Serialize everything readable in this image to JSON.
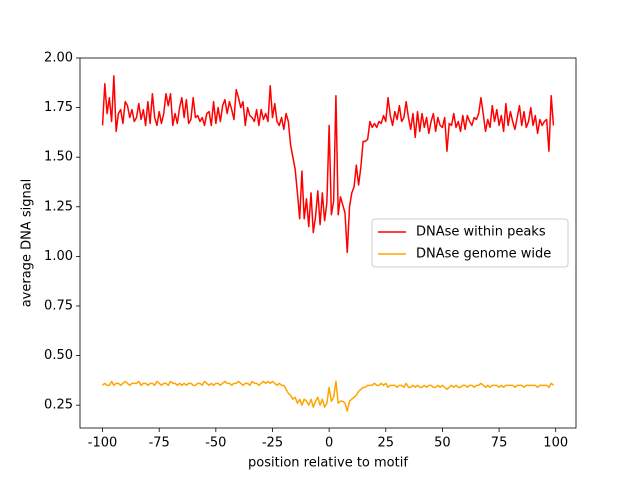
{
  "chart_data": {
    "type": "line",
    "xlabel": "position relative to motif",
    "ylabel": "average DNA signal",
    "x": [
      -100,
      -99,
      -98,
      -97,
      -96,
      -95,
      -94,
      -93,
      -92,
      -91,
      -90,
      -89,
      -88,
      -87,
      -86,
      -85,
      -84,
      -83,
      -82,
      -81,
      -80,
      -79,
      -78,
      -77,
      -76,
      -75,
      -74,
      -73,
      -72,
      -71,
      -70,
      -69,
      -68,
      -67,
      -66,
      -65,
      -64,
      -63,
      -62,
      -61,
      -60,
      -59,
      -58,
      -57,
      -56,
      -55,
      -54,
      -53,
      -52,
      -51,
      -50,
      -49,
      -48,
      -47,
      -46,
      -45,
      -44,
      -43,
      -42,
      -41,
      -40,
      -39,
      -38,
      -37,
      -36,
      -35,
      -34,
      -33,
      -32,
      -31,
      -30,
      -29,
      -28,
      -27,
      -26,
      -25,
      -24,
      -23,
      -22,
      -21,
      -20,
      -19,
      -18,
      -17,
      -16,
      -15,
      -14,
      -13,
      -12,
      -11,
      -10,
      -9,
      -8,
      -7,
      -6,
      -5,
      -4,
      -3,
      -2,
      -1,
      0,
      1,
      2,
      3,
      4,
      5,
      6,
      7,
      8,
      9,
      10,
      11,
      12,
      13,
      14,
      15,
      16,
      17,
      18,
      19,
      20,
      21,
      22,
      23,
      24,
      25,
      26,
      27,
      28,
      29,
      30,
      31,
      32,
      33,
      34,
      35,
      36,
      37,
      38,
      39,
      40,
      41,
      42,
      43,
      44,
      45,
      46,
      47,
      48,
      49,
      50,
      51,
      52,
      53,
      54,
      55,
      56,
      57,
      58,
      59,
      60,
      61,
      62,
      63,
      64,
      65,
      66,
      67,
      68,
      69,
      70,
      71,
      72,
      73,
      74,
      75,
      76,
      77,
      78,
      79,
      80,
      81,
      82,
      83,
      84,
      85,
      86,
      87,
      88,
      89,
      90,
      91,
      92,
      93,
      94,
      95,
      96,
      97,
      98,
      99
    ],
    "series": [
      {
        "name": "DNAse within peaks",
        "color": "#ff0000",
        "values": [
          1.66,
          1.87,
          1.72,
          1.8,
          1.68,
          1.91,
          1.63,
          1.72,
          1.74,
          1.67,
          1.78,
          1.76,
          1.7,
          1.74,
          1.68,
          1.7,
          1.77,
          1.69,
          1.74,
          1.66,
          1.78,
          1.67,
          1.82,
          1.7,
          1.66,
          1.73,
          1.67,
          1.72,
          1.82,
          1.76,
          1.82,
          1.66,
          1.72,
          1.67,
          1.75,
          1.8,
          1.7,
          1.79,
          1.67,
          1.69,
          1.8,
          1.7,
          1.71,
          1.68,
          1.7,
          1.66,
          1.72,
          1.73,
          1.66,
          1.78,
          1.67,
          1.75,
          1.68,
          1.76,
          1.79,
          1.72,
          1.78,
          1.74,
          1.69,
          1.84,
          1.8,
          1.75,
          1.78,
          1.66,
          1.75,
          1.71,
          1.7,
          1.68,
          1.74,
          1.66,
          1.74,
          1.69,
          1.72,
          1.68,
          1.86,
          1.7,
          1.77,
          1.68,
          1.66,
          1.7,
          1.64,
          1.72,
          1.68,
          1.56,
          1.5,
          1.44,
          1.32,
          1.19,
          1.43,
          1.19,
          1.29,
          1.15,
          1.32,
          1.12,
          1.2,
          1.33,
          1.16,
          1.32,
          1.18,
          1.27,
          1.66,
          1.21,
          1.28,
          1.81,
          1.21,
          1.3,
          1.26,
          1.22,
          1.02,
          1.25,
          1.32,
          1.35,
          1.46,
          1.36,
          1.45,
          1.58,
          1.58,
          1.59,
          1.68,
          1.65,
          1.67,
          1.65,
          1.68,
          1.67,
          1.71,
          1.68,
          1.8,
          1.71,
          1.66,
          1.73,
          1.69,
          1.76,
          1.68,
          1.7,
          1.78,
          1.7,
          1.64,
          1.72,
          1.6,
          1.73,
          1.63,
          1.72,
          1.65,
          1.7,
          1.62,
          1.68,
          1.72,
          1.63,
          1.7,
          1.66,
          1.65,
          1.7,
          1.53,
          1.67,
          1.66,
          1.72,
          1.65,
          1.68,
          1.63,
          1.71,
          1.64,
          1.71,
          1.68,
          1.66,
          1.7,
          1.69,
          1.72,
          1.8,
          1.72,
          1.63,
          1.69,
          1.65,
          1.76,
          1.68,
          1.74,
          1.66,
          1.71,
          1.63,
          1.77,
          1.66,
          1.73,
          1.68,
          1.64,
          1.7,
          1.76,
          1.66,
          1.73,
          1.65,
          1.68,
          1.75,
          1.66,
          1.71,
          1.62,
          1.69,
          1.66,
          1.68,
          1.69,
          1.53,
          1.81,
          1.66
        ]
      },
      {
        "name": "DNAse genome wide",
        "color": "#ffa500",
        "values": [
          0.35,
          0.36,
          0.35,
          0.35,
          0.37,
          0.35,
          0.36,
          0.36,
          0.35,
          0.36,
          0.37,
          0.36,
          0.35,
          0.36,
          0.36,
          0.36,
          0.37,
          0.35,
          0.36,
          0.36,
          0.35,
          0.36,
          0.36,
          0.35,
          0.37,
          0.36,
          0.35,
          0.36,
          0.36,
          0.35,
          0.37,
          0.36,
          0.36,
          0.35,
          0.36,
          0.35,
          0.36,
          0.35,
          0.36,
          0.36,
          0.35,
          0.35,
          0.36,
          0.36,
          0.35,
          0.37,
          0.36,
          0.35,
          0.36,
          0.35,
          0.36,
          0.36,
          0.35,
          0.36,
          0.37,
          0.36,
          0.36,
          0.35,
          0.36,
          0.36,
          0.37,
          0.36,
          0.35,
          0.36,
          0.36,
          0.35,
          0.37,
          0.36,
          0.36,
          0.35,
          0.36,
          0.37,
          0.36,
          0.37,
          0.36,
          0.37,
          0.36,
          0.35,
          0.36,
          0.35,
          0.35,
          0.33,
          0.31,
          0.3,
          0.28,
          0.29,
          0.26,
          0.28,
          0.25,
          0.28,
          0.27,
          0.25,
          0.28,
          0.24,
          0.27,
          0.29,
          0.25,
          0.28,
          0.24,
          0.26,
          0.34,
          0.27,
          0.29,
          0.37,
          0.26,
          0.27,
          0.27,
          0.26,
          0.22,
          0.27,
          0.28,
          0.29,
          0.3,
          0.32,
          0.33,
          0.34,
          0.34,
          0.35,
          0.35,
          0.35,
          0.36,
          0.35,
          0.35,
          0.36,
          0.35,
          0.36,
          0.34,
          0.35,
          0.35,
          0.35,
          0.34,
          0.35,
          0.35,
          0.34,
          0.36,
          0.34,
          0.34,
          0.35,
          0.34,
          0.35,
          0.34,
          0.34,
          0.35,
          0.34,
          0.35,
          0.35,
          0.34,
          0.34,
          0.35,
          0.34,
          0.35,
          0.34,
          0.33,
          0.34,
          0.35,
          0.34,
          0.35,
          0.34,
          0.34,
          0.35,
          0.35,
          0.34,
          0.35,
          0.35,
          0.34,
          0.35,
          0.35,
          0.36,
          0.35,
          0.34,
          0.35,
          0.34,
          0.35,
          0.35,
          0.35,
          0.34,
          0.35,
          0.34,
          0.35,
          0.35,
          0.35,
          0.35,
          0.34,
          0.35,
          0.35,
          0.35,
          0.34,
          0.35,
          0.35,
          0.35,
          0.35,
          0.35,
          0.34,
          0.35,
          0.35,
          0.35,
          0.35,
          0.34,
          0.36,
          0.35
        ]
      }
    ],
    "xlim": [
      -109.95,
      108.95
    ],
    "xticks": [
      -100,
      -75,
      -50,
      -25,
      0,
      25,
      50,
      75,
      100
    ],
    "ylim": [
      0.135,
      2.0
    ],
    "yticks": [
      0.25,
      {
        "value": 0.5,
        "label": "0.50"
      },
      0.75,
      {
        "value": 1.0,
        "label": "1.00"
      },
      1.25,
      {
        "value": 1.5,
        "label": "1.50"
      },
      1.75,
      {
        "value": 2.0,
        "label": "2.00"
      }
    ],
    "legend": "center right"
  }
}
